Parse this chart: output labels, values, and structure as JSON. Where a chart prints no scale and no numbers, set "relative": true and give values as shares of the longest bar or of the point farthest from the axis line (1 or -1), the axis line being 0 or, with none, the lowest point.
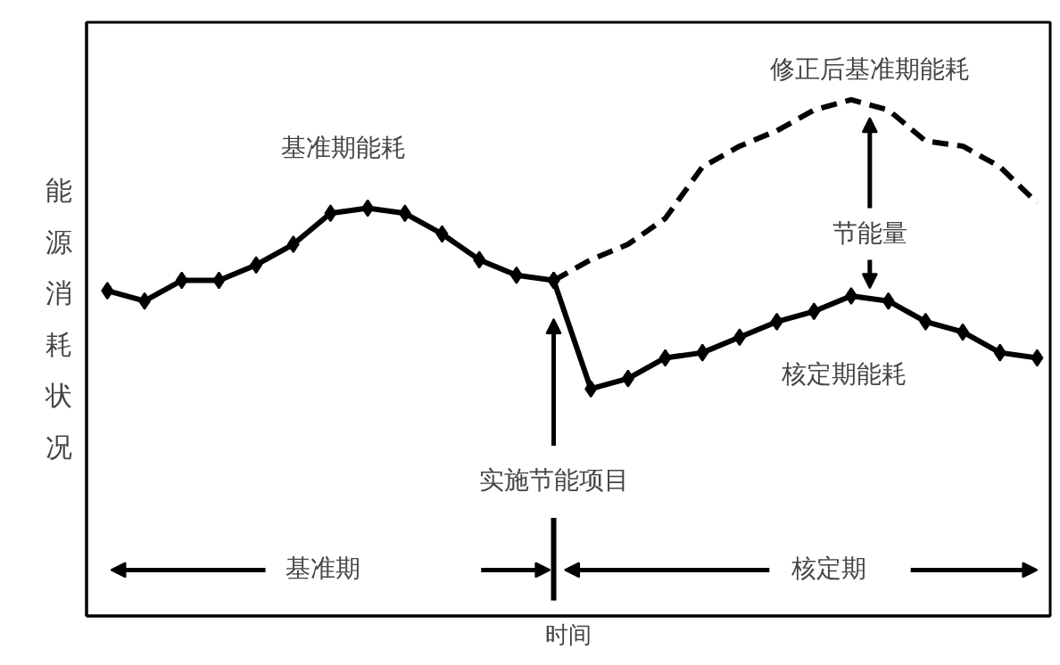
{
  "chart_data": {
    "type": "line",
    "relative": true,
    "xlabel": "时间",
    "ylabel": "能源消耗状况",
    "grid": false,
    "categories": [
      null,
      null,
      null,
      null,
      null,
      null,
      null,
      null,
      null,
      null,
      null,
      null,
      null,
      null,
      null,
      null,
      null,
      null,
      null,
      null,
      null,
      null,
      null,
      null,
      null,
      null
    ],
    "series": [
      {
        "name": "基准期能耗",
        "color": "#000000",
        "marker": "diamond",
        "line_style": "solid",
        "values": [
          0.63,
          0.61,
          0.65,
          0.65,
          0.68,
          0.72,
          0.78,
          0.79,
          0.78,
          0.74,
          0.69,
          0.66,
          0.65,
          null,
          null,
          null,
          null,
          null,
          null,
          null,
          null,
          null,
          null,
          null,
          null,
          null
        ]
      },
      {
        "name": "核定期能耗",
        "color": "#000000",
        "marker": "diamond",
        "line_style": "solid",
        "values": [
          null,
          null,
          null,
          null,
          null,
          null,
          null,
          null,
          null,
          null,
          null,
          null,
          0.65,
          0.44,
          0.46,
          0.5,
          0.51,
          0.54,
          0.57,
          0.59,
          0.62,
          0.61,
          0.57,
          0.55,
          0.51,
          0.5
        ]
      },
      {
        "name": "修正后基准期能耗",
        "color": "#000000",
        "marker": "none",
        "line_style": "dashed",
        "values": [
          null,
          null,
          null,
          null,
          null,
          null,
          null,
          null,
          null,
          null,
          null,
          null,
          0.65,
          0.69,
          0.72,
          0.77,
          0.87,
          0.91,
          0.94,
          0.98,
          1,
          0.98,
          0.92,
          0.91,
          0.87,
          0.8
        ]
      }
    ],
    "annotations": [
      "实施节能项目",
      "节能量",
      "基准期",
      "核定期"
    ]
  }
}
